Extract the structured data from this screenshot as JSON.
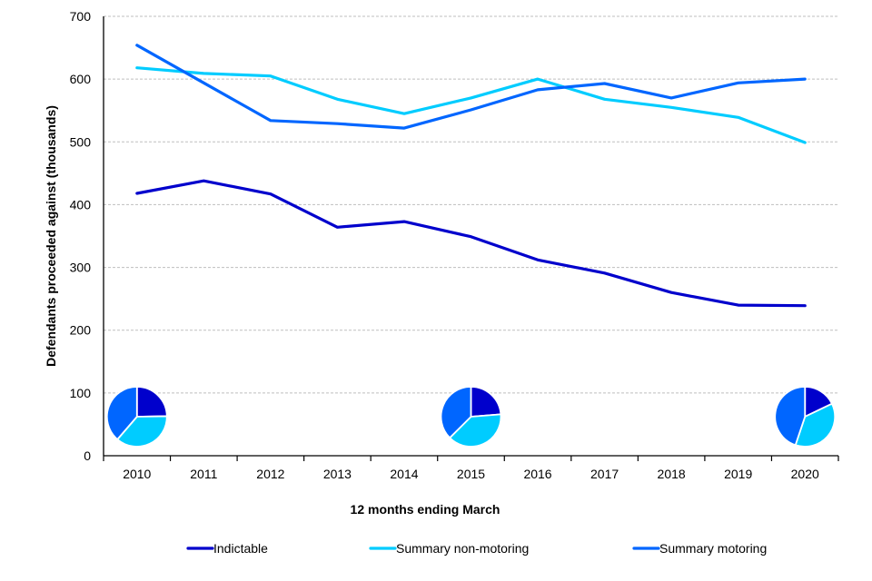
{
  "chart_data": {
    "type": "line",
    "title": "",
    "xlabel": "12 months ending March",
    "ylabel": "Defendants proceeded against (thousands)",
    "ylim": [
      0,
      700
    ],
    "yticks": [
      0,
      100,
      200,
      300,
      400,
      500,
      600,
      700
    ],
    "grid": true,
    "legend_position": "bottom",
    "categories": [
      "2010",
      "2011",
      "2012",
      "2013",
      "2014",
      "2015",
      "2016",
      "2017",
      "2018",
      "2019",
      "2020"
    ],
    "series": [
      {
        "name": "Indictable",
        "color": "#0000CC",
        "values": [
          418,
          438,
          417,
          364,
          373,
          349,
          312,
          291,
          260,
          240,
          239
        ]
      },
      {
        "name": "Summary non-motoring",
        "color": "#00CCFF",
        "values": [
          618,
          609,
          605,
          568,
          545,
          570,
          600,
          568,
          555,
          539,
          499
        ]
      },
      {
        "name": "Summary motoring",
        "color": "#0066FF",
        "values": [
          654,
          594,
          534,
          529,
          522,
          551,
          583,
          593,
          570,
          594,
          600
        ]
      }
    ],
    "pie_insets": [
      {
        "category": "2010",
        "values": {
          "Indictable": 418,
          "Summary non-motoring": 618,
          "Summary motoring": 654
        }
      },
      {
        "category": "2015",
        "values": {
          "Indictable": 349,
          "Summary non-motoring": 570,
          "Summary motoring": 551
        }
      },
      {
        "category": "2020",
        "values": {
          "Indictable": 239,
          "Summary non-motoring": 499,
          "Summary motoring": 600
        }
      }
    ]
  }
}
